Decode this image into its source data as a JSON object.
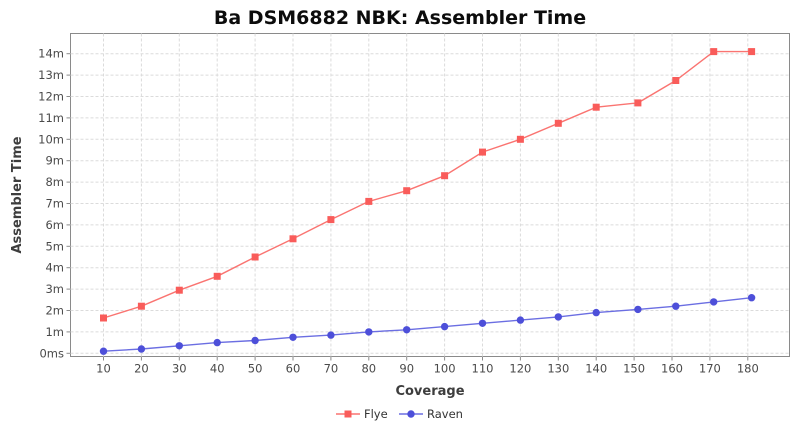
{
  "title": "Ba DSM6882 NBK: Assembler Time",
  "chart_data": {
    "type": "line",
    "title": "Ba DSM6882 NBK: Assembler Time",
    "xlabel": "Coverage",
    "ylabel": "Assembler Time",
    "y_unit": "minutes",
    "x": [
      10,
      20,
      30,
      40,
      50,
      60,
      70,
      80,
      90,
      100,
      110,
      120,
      130,
      140,
      151,
      161,
      171,
      181
    ],
    "x_ticks": [
      10,
      20,
      30,
      40,
      50,
      60,
      70,
      80,
      90,
      100,
      110,
      120,
      130,
      140,
      150,
      160,
      170,
      180
    ],
    "x_tick_labels": [
      "10",
      "20",
      "30",
      "40",
      "50",
      "60",
      "70",
      "80",
      "90",
      "100",
      "110",
      "120",
      "130",
      "140",
      "150",
      "160",
      "170",
      "180"
    ],
    "y_ticks": [
      0,
      1,
      2,
      3,
      4,
      5,
      6,
      7,
      8,
      9,
      10,
      11,
      12,
      13,
      14
    ],
    "y_tick_labels": [
      "0ms",
      "1m",
      "2m",
      "3m",
      "4m",
      "5m",
      "6m",
      "7m",
      "8m",
      "9m",
      "10m",
      "11m",
      "12m",
      "13m",
      "14m"
    ],
    "ylim": [
      -0.2,
      15.1
    ],
    "grid": true,
    "legend_position": "bottom",
    "series": [
      {
        "name": "Flye",
        "marker": "square",
        "color": "#f95c5a",
        "line_color": "#fa7471",
        "values": [
          1.65,
          2.2,
          2.95,
          3.6,
          4.5,
          5.35,
          6.25,
          7.1,
          7.6,
          8.3,
          9.4,
          10.0,
          10.75,
          11.5,
          11.7,
          12.75,
          14.1,
          14.1
        ]
      },
      {
        "name": "Raven",
        "marker": "circle",
        "color": "#4d4fd9",
        "line_color": "#6b6ee2",
        "values": [
          0.1,
          0.2,
          0.35,
          0.5,
          0.6,
          0.75,
          0.85,
          1.0,
          1.1,
          1.25,
          1.4,
          1.55,
          1.7,
          1.9,
          2.05,
          2.2,
          2.4,
          2.6
        ]
      }
    ]
  },
  "colors": {
    "background": "#ffffff",
    "grid": "#dbdbdb",
    "plot_border": "#8a8a8a",
    "tick": "#8a8a8a",
    "title_text": "#0c0c0c",
    "axis_label_text": "#3d3d3d",
    "tick_label_text": "#4a4a4a",
    "legend_text": "#333333"
  }
}
